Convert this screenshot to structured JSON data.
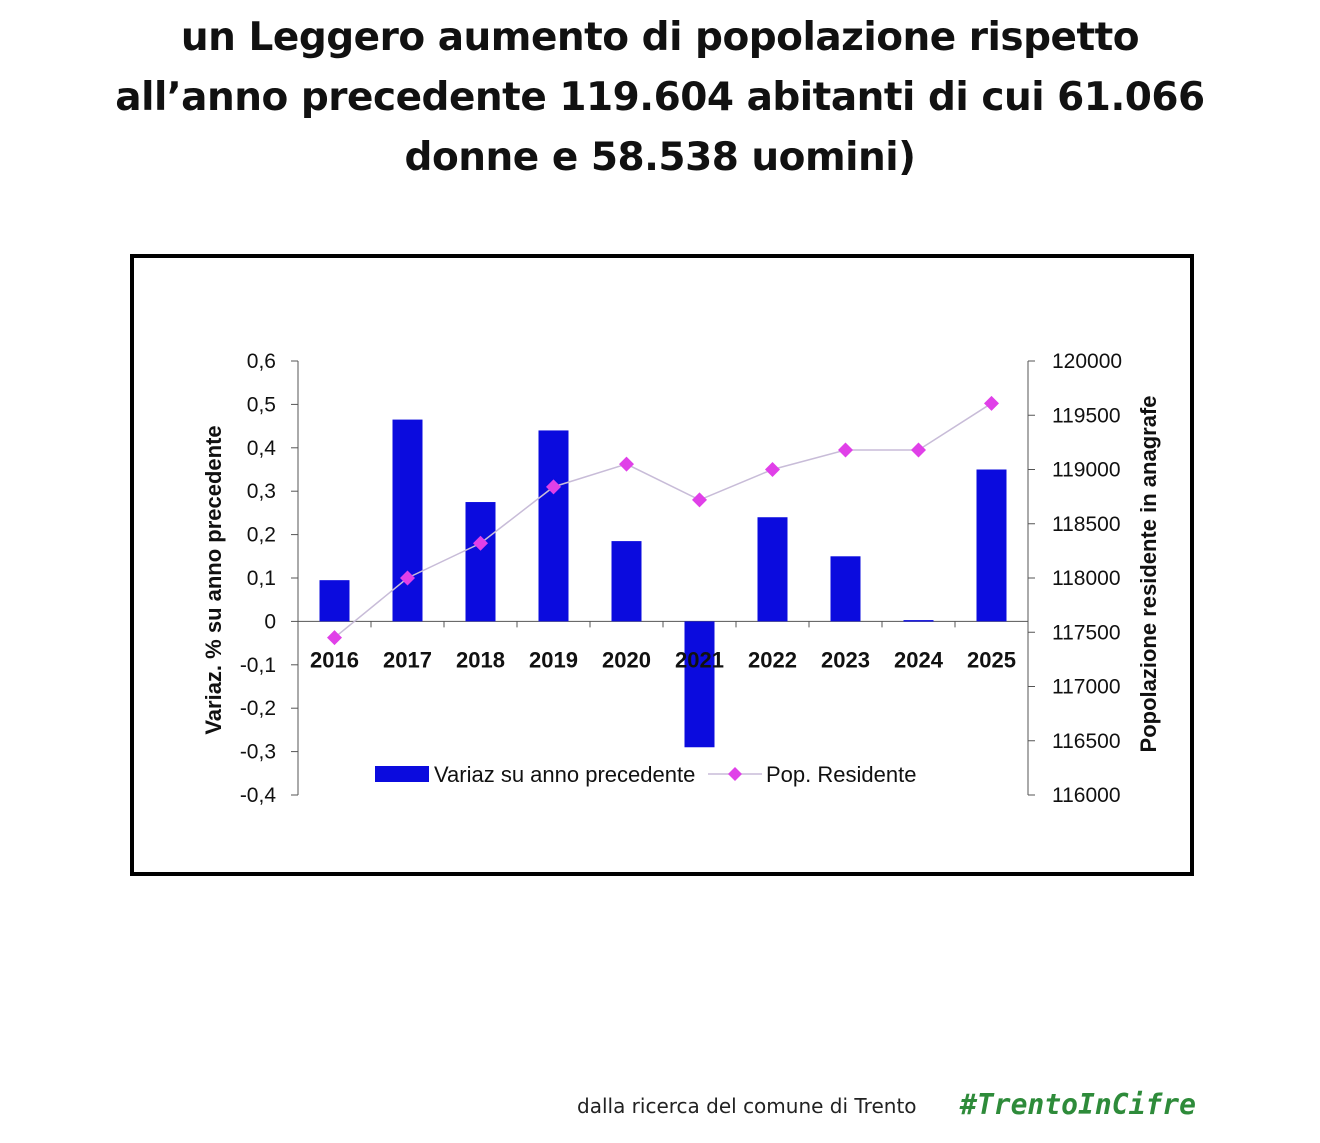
{
  "headline": {
    "line1": "un Leggero aumento di popolazione rispetto",
    "line2": "all’anno precedente 119.604 abitanti di cui 61.066",
    "line3": "donne e 58.538 uomini)"
  },
  "chart_data": {
    "type": "bar",
    "categories": [
      "2016",
      "2017",
      "2018",
      "2019",
      "2020",
      "2021",
      "2022",
      "2023",
      "2024",
      "2025"
    ],
    "series": [
      {
        "name": "Variaz su anno precedente",
        "type": "bar",
        "axis": "left",
        "color": "#0b0bde",
        "values": [
          0.095,
          0.465,
          0.275,
          0.44,
          0.185,
          -0.29,
          0.24,
          0.15,
          0.003,
          0.35
        ]
      },
      {
        "name": "Pop. Residente",
        "type": "line",
        "axis": "right",
        "color": "#e040e8",
        "line_color": "#c8bcd8",
        "values": [
          117450,
          118000,
          118320,
          118840,
          119050,
          118720,
          119000,
          119180,
          119180,
          119610
        ]
      }
    ],
    "ylabel": "Variaz. % su anno precedente",
    "y2label": "Popolazione residente in anagrafe",
    "ylim": [
      -0.4,
      0.6
    ],
    "y2lim": [
      116000,
      120000
    ],
    "yticks": [
      "0,6",
      "0,5",
      "0,4",
      "0,3",
      "0,2",
      "0,1",
      "0",
      "-0,1",
      "-0,2",
      "-0,3",
      "-0,4"
    ],
    "y2ticks": [
      "120000",
      "119500",
      "119000",
      "118500",
      "118000",
      "117500",
      "117000",
      "116500",
      "116000"
    ],
    "legend_position": "bottom-center",
    "grid": false
  },
  "footer": {
    "source": "dalla ricerca del comune di Trento",
    "hashtag": "#TrentoInCifre"
  }
}
